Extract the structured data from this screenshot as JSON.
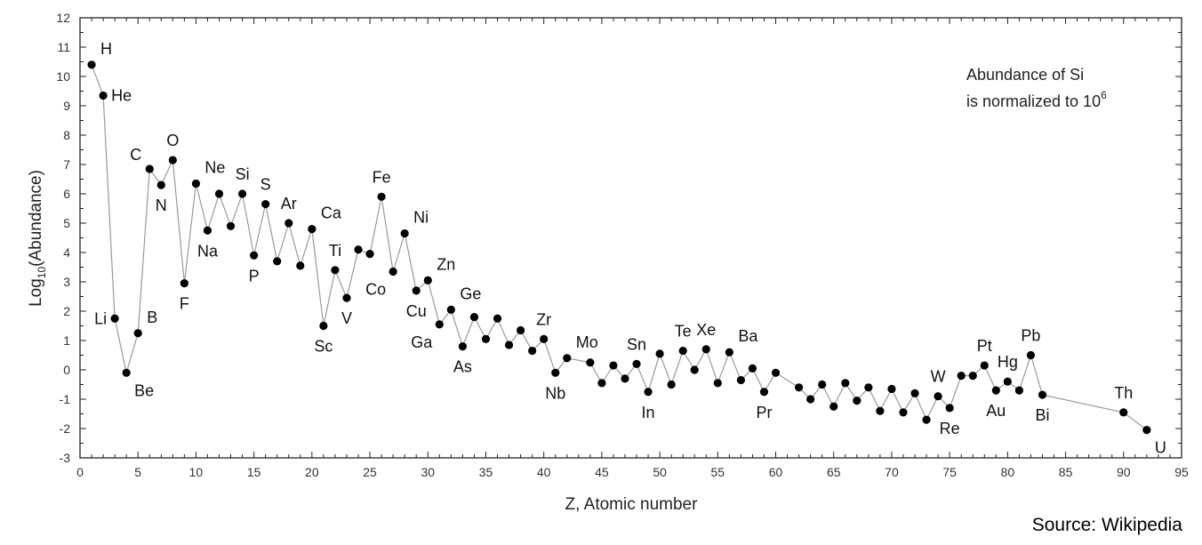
{
  "colors": {
    "background": "#ffffff",
    "axis": "#222222",
    "line": "#9a9a9a",
    "marker": "#000000",
    "text": "#111111"
  },
  "source_text": "Source: Wikipedia",
  "chart_data": {
    "type": "scatter",
    "xlabel": "Z, Atomic number",
    "ylabel": {
      "main": "Log",
      "sub": "10",
      "rest": "(Abundance)"
    },
    "xlim": [
      0,
      95
    ],
    "ylim": [
      -3,
      12
    ],
    "xticks": [
      0,
      5,
      10,
      15,
      20,
      25,
      30,
      35,
      40,
      45,
      50,
      55,
      60,
      65,
      70,
      75,
      80,
      85,
      90,
      95
    ],
    "yticks": [
      -3,
      -2,
      -1,
      0,
      1,
      2,
      3,
      4,
      5,
      6,
      7,
      8,
      9,
      10,
      11,
      12
    ],
    "annotation": {
      "line1": "Abundance of Si",
      "line2_prefix": "is normalized to 10",
      "line2_sup": "6",
      "position": "top-right"
    },
    "series": [
      {
        "connected": true,
        "points": [
          {
            "z": 1,
            "y": 10.4,
            "label": "H",
            "pos": "ur"
          },
          {
            "z": 2,
            "y": 9.35,
            "label": "He",
            "pos": "r"
          },
          {
            "z": 3,
            "y": 1.75,
            "label": "Li",
            "pos": "l"
          },
          {
            "z": 4,
            "y": -0.1,
            "label": "Be",
            "pos": "br"
          },
          {
            "z": 5,
            "y": 1.25,
            "label": "B",
            "pos": "ur"
          },
          {
            "z": 6,
            "y": 6.85,
            "label": "C",
            "pos": "ul"
          },
          {
            "z": 7,
            "y": 6.3,
            "label": "N",
            "pos": "b"
          },
          {
            "z": 8,
            "y": 7.15,
            "label": "O",
            "pos": "u"
          },
          {
            "z": 9,
            "y": 2.95,
            "label": "F",
            "pos": "b"
          },
          {
            "z": 10,
            "y": 6.35,
            "label": "Ne",
            "pos": "ur"
          },
          {
            "z": 11,
            "y": 4.75,
            "label": "Na",
            "pos": "b"
          },
          {
            "z": 12,
            "y": 6.0
          },
          {
            "z": 13,
            "y": 4.9
          },
          {
            "z": 14,
            "y": 6.0,
            "label": "Si",
            "pos": "u"
          },
          {
            "z": 15,
            "y": 3.9,
            "label": "P",
            "pos": "b"
          },
          {
            "z": 16,
            "y": 5.65,
            "label": "S",
            "pos": "u"
          },
          {
            "z": 17,
            "y": 3.7
          },
          {
            "z": 18,
            "y": 5.0,
            "label": "Ar",
            "pos": "u"
          },
          {
            "z": 19,
            "y": 3.55
          },
          {
            "z": 20,
            "y": 4.8,
            "label": "Ca",
            "pos": "ur"
          },
          {
            "z": 21,
            "y": 1.5,
            "label": "Sc",
            "pos": "b"
          },
          {
            "z": 22,
            "y": 3.4,
            "label": "Ti",
            "pos": "u"
          },
          {
            "z": 23,
            "y": 2.45,
            "label": "V",
            "pos": "b"
          },
          {
            "z": 24,
            "y": 4.1
          },
          {
            "z": 25,
            "y": 3.95
          },
          {
            "z": 26,
            "y": 5.9,
            "label": "Fe",
            "pos": "u"
          },
          {
            "z": 27,
            "y": 3.35,
            "label": "Co",
            "pos": "bl"
          },
          {
            "z": 28,
            "y": 4.65,
            "label": "Ni",
            "pos": "ur"
          },
          {
            "z": 29,
            "y": 2.7,
            "label": "Cu",
            "pos": "b"
          },
          {
            "z": 30,
            "y": 3.05,
            "label": "Zn",
            "pos": "ur"
          },
          {
            "z": 31,
            "y": 1.55,
            "label": "Ga",
            "pos": "bl"
          },
          {
            "z": 32,
            "y": 2.05,
            "label": "Ge",
            "pos": "ur"
          },
          {
            "z": 33,
            "y": 0.8,
            "label": "As",
            "pos": "b"
          },
          {
            "z": 34,
            "y": 1.8
          },
          {
            "z": 35,
            "y": 1.05
          },
          {
            "z": 36,
            "y": 1.75
          },
          {
            "z": 37,
            "y": 0.85
          },
          {
            "z": 38,
            "y": 1.35
          },
          {
            "z": 39,
            "y": 0.65
          },
          {
            "z": 40,
            "y": 1.05,
            "label": "Zr",
            "pos": "u"
          },
          {
            "z": 41,
            "y": -0.1,
            "label": "Nb",
            "pos": "b"
          },
          {
            "z": 42,
            "y": 0.4,
            "label": "Mo",
            "pos": "ur"
          },
          {
            "z": 43,
            "y": null
          },
          {
            "z": 44,
            "y": 0.25
          },
          {
            "z": 45,
            "y": -0.45
          },
          {
            "z": 46,
            "y": 0.15
          },
          {
            "z": 47,
            "y": -0.3
          },
          {
            "z": 48,
            "y": 0.2,
            "label": "Sn",
            "pos": "u"
          },
          {
            "z": 49,
            "y": -0.75,
            "label": "In",
            "pos": "b"
          },
          {
            "z": 50,
            "y": 0.55
          },
          {
            "z": 51,
            "y": -0.5
          },
          {
            "z": 52,
            "y": 0.65,
            "label": "Te",
            "pos": "u"
          },
          {
            "z": 53,
            "y": 0.0
          },
          {
            "z": 54,
            "y": 0.7,
            "label": "Xe",
            "pos": "u"
          },
          {
            "z": 55,
            "y": -0.45
          },
          {
            "z": 56,
            "y": 0.6,
            "label": "Ba",
            "pos": "ur"
          },
          {
            "z": 57,
            "y": -0.35
          },
          {
            "z": 58,
            "y": 0.05
          },
          {
            "z": 59,
            "y": -0.75,
            "label": "Pr",
            "pos": "b"
          },
          {
            "z": 60,
            "y": -0.1
          },
          {
            "z": 61,
            "y": null
          },
          {
            "z": 62,
            "y": -0.6
          },
          {
            "z": 63,
            "y": -1.0
          },
          {
            "z": 64,
            "y": -0.5
          },
          {
            "z": 65,
            "y": -1.25
          },
          {
            "z": 66,
            "y": -0.45
          },
          {
            "z": 67,
            "y": -1.05
          },
          {
            "z": 68,
            "y": -0.6
          },
          {
            "z": 69,
            "y": -1.4
          },
          {
            "z": 70,
            "y": -0.65
          },
          {
            "z": 71,
            "y": -1.45
          },
          {
            "z": 72,
            "y": -0.8
          },
          {
            "z": 73,
            "y": -1.7
          },
          {
            "z": 74,
            "y": -0.9,
            "label": "W",
            "pos": "u"
          },
          {
            "z": 75,
            "y": -1.3,
            "label": "Re",
            "pos": "b"
          },
          {
            "z": 76,
            "y": -0.2
          },
          {
            "z": 77,
            "y": -0.2
          },
          {
            "z": 78,
            "y": 0.15,
            "label": "Pt",
            "pos": "u"
          },
          {
            "z": 79,
            "y": -0.7,
            "label": "Au",
            "pos": "b"
          },
          {
            "z": 80,
            "y": -0.4,
            "label": "Hg",
            "pos": "u"
          },
          {
            "z": 81,
            "y": -0.7
          },
          {
            "z": 82,
            "y": 0.5,
            "label": "Pb",
            "pos": "u"
          },
          {
            "z": 83,
            "y": -0.85,
            "label": "Bi",
            "pos": "b"
          },
          {
            "z": 90,
            "y": -1.45,
            "label": "Th",
            "pos": "u"
          },
          {
            "z": 92,
            "y": -2.05,
            "label": "U",
            "pos": "br"
          }
        ]
      }
    ]
  }
}
